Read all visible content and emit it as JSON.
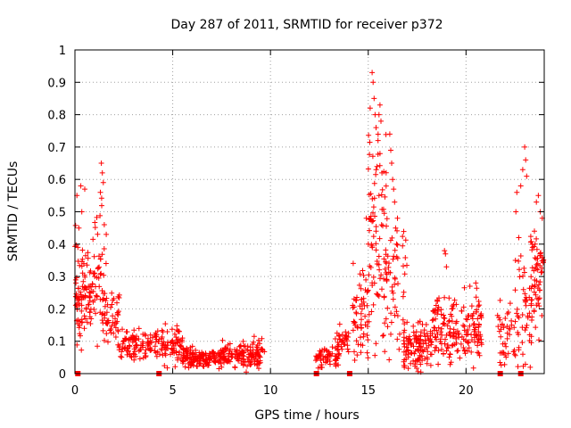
{
  "chart_data": {
    "type": "scatter",
    "title": "Day 287 of 2011, SRMTID for receiver p372",
    "xlabel": "GPS time / hours",
    "ylabel": "SRMTID / TECUs",
    "xlim": [
      0,
      24
    ],
    "ylim": [
      0,
      1
    ],
    "xticks": [
      0,
      5,
      10,
      15,
      20
    ],
    "xtick_labels": [
      "0",
      "5",
      "10",
      "15",
      "20"
    ],
    "yticks": [
      0,
      0.1,
      0.2,
      0.3,
      0.4,
      0.5,
      0.6,
      0.7,
      0.8,
      0.9,
      1
    ],
    "ytick_labels": [
      "0",
      "0.1",
      "0.2",
      "0.3",
      "0.4",
      "0.5",
      "0.6",
      "0.7",
      "0.8",
      "0.9",
      "1"
    ],
    "grid": true,
    "color": "#ff0000",
    "marker": "plus",
    "clusters": [
      {
        "x": [
          0.0,
          0.4
        ],
        "y": [
          0.25,
          0.15
        ],
        "n": 50
      },
      {
        "x": [
          0.4,
          1.0
        ],
        "y": [
          0.25,
          0.1
        ],
        "n": 50
      },
      {
        "x": [
          0.9,
          1.6
        ],
        "y": [
          0.3,
          0.15
        ],
        "n": 45
      },
      {
        "x": [
          1.4,
          2.3
        ],
        "y": [
          0.18,
          0.08
        ],
        "n": 45
      },
      {
        "x": [
          2.2,
          4.5
        ],
        "y": [
          0.09,
          0.04
        ],
        "n": 120
      },
      {
        "x": [
          4.5,
          5.5
        ],
        "y": [
          0.09,
          0.05
        ],
        "n": 60
      },
      {
        "x": [
          5.5,
          7.5
        ],
        "y": [
          0.05,
          0.025
        ],
        "n": 150
      },
      {
        "x": [
          7.5,
          9.7
        ],
        "y": [
          0.06,
          0.035
        ],
        "n": 150
      },
      {
        "x": [
          12.3,
          13.5
        ],
        "y": [
          0.05,
          0.03
        ],
        "n": 60
      },
      {
        "x": [
          13.3,
          14.0
        ],
        "y": [
          0.1,
          0.04
        ],
        "n": 35
      },
      {
        "x": [
          14.2,
          15.0
        ],
        "y": [
          0.18,
          0.1
        ],
        "n": 60
      },
      {
        "x": [
          15.0,
          16.0
        ],
        "y": [
          0.4,
          0.25
        ],
        "n": 80
      },
      {
        "x": [
          15.8,
          17.0
        ],
        "y": [
          0.25,
          0.2
        ],
        "n": 60
      },
      {
        "x": [
          16.8,
          18.3
        ],
        "y": [
          0.08,
          0.06
        ],
        "n": 120
      },
      {
        "x": [
          18.3,
          19.5
        ],
        "y": [
          0.14,
          0.09
        ],
        "n": 90
      },
      {
        "x": [
          19.5,
          20.8
        ],
        "y": [
          0.14,
          0.08
        ],
        "n": 90
      },
      {
        "x": [
          21.6,
          22.5
        ],
        "y": [
          0.12,
          0.08
        ],
        "n": 40
      },
      {
        "x": [
          22.5,
          23.4
        ],
        "y": [
          0.2,
          0.15
        ],
        "n": 50
      },
      {
        "x": [
          23.3,
          24.0
        ],
        "y": [
          0.3,
          0.15
        ],
        "n": 60
      }
    ],
    "highlights": [
      {
        "x": 0.1,
        "y": 0.55
      },
      {
        "x": 0.3,
        "y": 0.58
      },
      {
        "x": 0.35,
        "y": 0.5
      },
      {
        "x": 0.5,
        "y": 0.57
      },
      {
        "x": 0.2,
        "y": 0.45
      },
      {
        "x": 0.15,
        "y": 0.39
      },
      {
        "x": 1.35,
        "y": 0.65
      },
      {
        "x": 1.4,
        "y": 0.62
      },
      {
        "x": 1.45,
        "y": 0.59
      },
      {
        "x": 1.3,
        "y": 0.56
      },
      {
        "x": 1.5,
        "y": 0.46
      },
      {
        "x": 1.6,
        "y": 0.43
      },
      {
        "x": 15.2,
        "y": 0.93
      },
      {
        "x": 15.25,
        "y": 0.9
      },
      {
        "x": 15.3,
        "y": 0.85
      },
      {
        "x": 15.35,
        "y": 0.8
      },
      {
        "x": 15.4,
        "y": 0.76
      },
      {
        "x": 15.6,
        "y": 0.83
      },
      {
        "x": 15.55,
        "y": 0.8
      },
      {
        "x": 15.65,
        "y": 0.78
      },
      {
        "x": 15.1,
        "y": 0.82
      },
      {
        "x": 15.5,
        "y": 0.72
      },
      {
        "x": 15.6,
        "y": 0.68
      },
      {
        "x": 15.45,
        "y": 0.64
      },
      {
        "x": 15.7,
        "y": 0.62
      },
      {
        "x": 15.55,
        "y": 0.55
      },
      {
        "x": 15.2,
        "y": 0.47
      },
      {
        "x": 14.9,
        "y": 0.48
      },
      {
        "x": 16.1,
        "y": 0.74
      },
      {
        "x": 16.15,
        "y": 0.69
      },
      {
        "x": 16.2,
        "y": 0.65
      },
      {
        "x": 16.25,
        "y": 0.6
      },
      {
        "x": 16.3,
        "y": 0.57
      },
      {
        "x": 16.35,
        "y": 0.53
      },
      {
        "x": 16.4,
        "y": 0.45
      },
      {
        "x": 16.45,
        "y": 0.4
      },
      {
        "x": 15.4,
        "y": 0.44
      },
      {
        "x": 15.0,
        "y": 0.4
      },
      {
        "x": 18.9,
        "y": 0.38
      },
      {
        "x": 18.95,
        "y": 0.37
      },
      {
        "x": 19.0,
        "y": 0.33
      },
      {
        "x": 20.2,
        "y": 0.27
      },
      {
        "x": 20.5,
        "y": 0.28
      },
      {
        "x": 23.0,
        "y": 0.7
      },
      {
        "x": 23.05,
        "y": 0.66
      },
      {
        "x": 22.9,
        "y": 0.63
      },
      {
        "x": 23.1,
        "y": 0.61
      },
      {
        "x": 22.8,
        "y": 0.58
      },
      {
        "x": 22.6,
        "y": 0.56
      },
      {
        "x": 22.55,
        "y": 0.5
      },
      {
        "x": 23.7,
        "y": 0.55
      },
      {
        "x": 23.6,
        "y": 0.53
      },
      {
        "x": 23.8,
        "y": 0.5
      },
      {
        "x": 23.9,
        "y": 0.48
      },
      {
        "x": 23.5,
        "y": 0.44
      },
      {
        "x": 22.7,
        "y": 0.42
      },
      {
        "x": 23.4,
        "y": 0.39
      }
    ],
    "baseline_squares": [
      {
        "x": 0.15,
        "y": 0
      },
      {
        "x": 4.3,
        "y": 0
      },
      {
        "x": 12.35,
        "y": 0
      },
      {
        "x": 14.05,
        "y": 0
      },
      {
        "x": 21.75,
        "y": 0
      },
      {
        "x": 22.8,
        "y": 0
      }
    ]
  }
}
